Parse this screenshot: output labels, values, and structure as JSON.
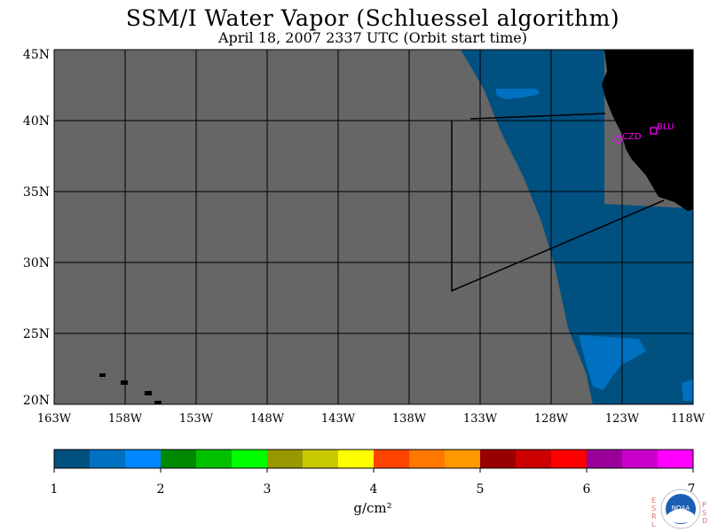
{
  "title": "SSM/I Water Vapor (Schluessel algorithm)",
  "subtitle": "April 18, 2007  2337 UTC  (Orbit start time)",
  "map": {
    "lon_labels": [
      "163W",
      "158W",
      "153W",
      "148W",
      "143W",
      "138W",
      "133W",
      "128W",
      "123W",
      "118W"
    ],
    "lat_labels": [
      "45N",
      "40N",
      "35N",
      "30N",
      "25N",
      "20N"
    ],
    "stations": [
      {
        "id": "CZD",
        "label": "CZD"
      },
      {
        "id": "BLU",
        "label": "BLU"
      }
    ],
    "colors": {
      "no_data": "#666666",
      "land": "#000000",
      "vapor_low": "#005080",
      "vapor_mid": "#0070c0",
      "station": "#ff00ff"
    }
  },
  "colorbar": {
    "tick_labels": [
      "1",
      "2",
      "3",
      "4",
      "5",
      "6",
      "7"
    ],
    "unit": "g/cm²",
    "colors": [
      "#005080",
      "#0070c0",
      "#0088ff",
      "#008800",
      "#00c000",
      "#00ff00",
      "#989800",
      "#c8c800",
      "#ffff00",
      "#ff4400",
      "#ff7700",
      "#ff9900",
      "#990000",
      "#cc0000",
      "#ff0000",
      "#990099",
      "#cc00cc",
      "#ff00ff"
    ]
  },
  "logo": {
    "text": "NOAA",
    "left_letters": [
      "E",
      "S",
      "R",
      "L"
    ],
    "right_letters": [
      "P",
      "S",
      "D"
    ]
  }
}
